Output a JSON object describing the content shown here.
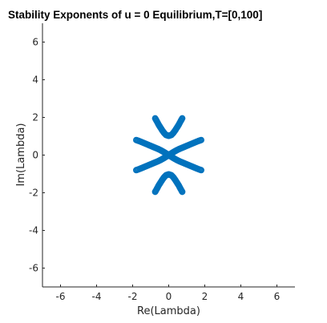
{
  "chart_data": {
    "type": "scatter",
    "title": "Stability Exponents of u = 0 Equilibrium,T=[0,100]",
    "xlabel": "Re(Lambda)",
    "ylabel": "Im(Lambda)",
    "xlim": [
      -7,
      7
    ],
    "ylim": [
      -7,
      7
    ],
    "xticks": [
      "-6",
      "-4",
      "-2",
      "0",
      "2",
      "4",
      "6"
    ],
    "yticks": [
      "-6",
      "-4",
      "-2",
      "0",
      "2",
      "4",
      "6"
    ],
    "xtick_values": [
      -6,
      -4,
      -2,
      0,
      2,
      4,
      6
    ],
    "ytick_values": [
      -6,
      -4,
      -2,
      0,
      2,
      4,
      6
    ],
    "grid": false,
    "marker_color": "#0072BD",
    "series": [
      {
        "branches": [
          {
            "points": [
              [
                -0.75,
                1.95
              ],
              [
                -0.65,
                1.78
              ],
              [
                -0.55,
                1.6
              ],
              [
                -0.45,
                1.45
              ],
              [
                -0.35,
                1.3
              ],
              [
                -0.25,
                1.17
              ],
              [
                -0.15,
                1.07
              ],
              [
                0.0,
                1.02
              ],
              [
                0.15,
                1.07
              ],
              [
                0.25,
                1.17
              ],
              [
                0.35,
                1.3
              ],
              [
                0.45,
                1.45
              ],
              [
                0.55,
                1.6
              ],
              [
                0.65,
                1.78
              ],
              [
                0.75,
                1.95
              ]
            ]
          },
          {
            "points": [
              [
                -0.75,
                -1.95
              ],
              [
                -0.65,
                -1.78
              ],
              [
                -0.55,
                -1.6
              ],
              [
                -0.45,
                -1.45
              ],
              [
                -0.35,
                -1.3
              ],
              [
                -0.25,
                -1.17
              ],
              [
                -0.15,
                -1.07
              ],
              [
                0.0,
                -1.02
              ],
              [
                0.15,
                -1.07
              ],
              [
                0.25,
                -1.17
              ],
              [
                0.35,
                -1.3
              ],
              [
                0.45,
                -1.45
              ],
              [
                0.55,
                -1.6
              ],
              [
                0.65,
                -1.78
              ],
              [
                0.75,
                -1.95
              ]
            ]
          },
          {
            "points": [
              [
                -1.8,
                0.8
              ],
              [
                -1.6,
                0.73
              ],
              [
                -1.4,
                0.65
              ],
              [
                -1.2,
                0.57
              ],
              [
                -1.0,
                0.49
              ],
              [
                -0.8,
                0.41
              ],
              [
                -0.6,
                0.33
              ],
              [
                -0.45,
                0.26
              ],
              [
                -0.3,
                0.18
              ],
              [
                -0.2,
                0.12
              ],
              [
                -0.1,
                0.06
              ],
              [
                0.0,
                0.02
              ]
            ]
          },
          {
            "points": [
              [
                1.8,
                0.8
              ],
              [
                1.6,
                0.73
              ],
              [
                1.4,
                0.65
              ],
              [
                1.2,
                0.57
              ],
              [
                1.0,
                0.49
              ],
              [
                0.8,
                0.41
              ],
              [
                0.6,
                0.33
              ],
              [
                0.45,
                0.26
              ],
              [
                0.3,
                0.18
              ],
              [
                0.2,
                0.12
              ],
              [
                0.1,
                0.06
              ]
            ]
          },
          {
            "points": [
              [
                -1.8,
                -0.8
              ],
              [
                -1.6,
                -0.73
              ],
              [
                -1.4,
                -0.65
              ],
              [
                -1.2,
                -0.57
              ],
              [
                -1.0,
                -0.49
              ],
              [
                -0.8,
                -0.41
              ],
              [
                -0.6,
                -0.33
              ],
              [
                -0.45,
                -0.26
              ],
              [
                -0.3,
                -0.18
              ],
              [
                -0.2,
                -0.12
              ],
              [
                -0.1,
                -0.06
              ],
              [
                0.0,
                -0.02
              ]
            ]
          },
          {
            "points": [
              [
                1.8,
                -0.8
              ],
              [
                1.6,
                -0.73
              ],
              [
                1.4,
                -0.65
              ],
              [
                1.2,
                -0.57
              ],
              [
                1.0,
                -0.49
              ],
              [
                0.8,
                -0.41
              ],
              [
                0.6,
                -0.33
              ],
              [
                0.45,
                -0.26
              ],
              [
                0.3,
                -0.18
              ],
              [
                0.2,
                -0.12
              ],
              [
                0.1,
                -0.06
              ]
            ]
          }
        ]
      }
    ]
  }
}
